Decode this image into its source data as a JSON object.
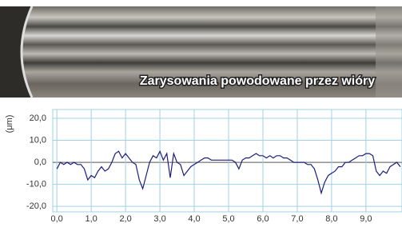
{
  "photo": {
    "caption": "Zarysowania powodowane przez wióry"
  },
  "chart_data": {
    "type": "line",
    "y_label": "(μm)",
    "color": "#1c1f7a",
    "grid": true,
    "xlim": [
      -0.12,
      10.05
    ],
    "ylim": [
      -22.5,
      24
    ],
    "xticks": [
      {
        "value": 0,
        "label": "0,0"
      },
      {
        "value": 1,
        "label": "1,0"
      },
      {
        "value": 2,
        "label": "2,0"
      },
      {
        "value": 3,
        "label": "3,0"
      },
      {
        "value": 4,
        "label": "4,0"
      },
      {
        "value": 5,
        "label": "5,0"
      },
      {
        "value": 6,
        "label": "6,0"
      },
      {
        "value": 7,
        "label": "7,0"
      },
      {
        "value": 8,
        "label": "8,0"
      },
      {
        "value": 9,
        "label": "9,0"
      }
    ],
    "yticks": [
      {
        "value": 20,
        "label": "20,0"
      },
      {
        "value": 10,
        "label": "10,0"
      },
      {
        "value": 0,
        "label": "0,0"
      },
      {
        "value": -10,
        "label": "-10,0"
      },
      {
        "value": -20,
        "label": "-20,0"
      }
    ],
    "x": [
      0.0,
      0.1,
      0.2,
      0.3,
      0.4,
      0.5,
      0.6,
      0.7,
      0.8,
      0.9,
      1.0,
      1.1,
      1.2,
      1.3,
      1.4,
      1.5,
      1.6,
      1.7,
      1.8,
      1.9,
      2.0,
      2.1,
      2.2,
      2.3,
      2.4,
      2.5,
      2.6,
      2.7,
      2.8,
      2.9,
      3.0,
      3.1,
      3.2,
      3.3,
      3.4,
      3.5,
      3.6,
      3.7,
      3.8,
      3.9,
      4.0,
      4.1,
      4.2,
      4.3,
      4.4,
      4.5,
      4.6,
      4.7,
      4.8,
      4.9,
      5.0,
      5.1,
      5.2,
      5.3,
      5.4,
      5.5,
      5.6,
      5.7,
      5.8,
      5.9,
      6.0,
      6.1,
      6.2,
      6.3,
      6.4,
      6.5,
      6.6,
      6.7,
      6.8,
      6.9,
      7.0,
      7.1,
      7.2,
      7.3,
      7.4,
      7.5,
      7.6,
      7.7,
      7.8,
      7.9,
      8.0,
      8.1,
      8.2,
      8.3,
      8.4,
      8.5,
      8.6,
      8.7,
      8.8,
      8.9,
      9.0,
      9.1,
      9.2,
      9.3,
      9.4,
      9.5,
      9.6,
      9.7,
      9.8,
      9.9,
      10.0
    ],
    "values": [
      -3,
      0,
      -1,
      0,
      -1,
      0,
      -1,
      -1,
      -3,
      -8,
      -6,
      -7,
      -4,
      -2,
      -4,
      -3,
      0,
      4,
      5,
      2,
      4,
      2,
      0,
      -1,
      -8,
      -12,
      -6,
      0,
      3,
      2,
      5,
      1,
      4,
      -7,
      4,
      0,
      -1,
      -6,
      -4,
      -2,
      -1,
      0,
      1,
      2,
      2,
      1,
      1,
      1,
      1,
      1,
      1,
      1,
      0,
      -3,
      1,
      2,
      2,
      3,
      4,
      3,
      3,
      2,
      3,
      2,
      3,
      3,
      2,
      2,
      1,
      0,
      0,
      0,
      0,
      -1,
      -1,
      -3,
      -8,
      -14,
      -9,
      -6,
      -5,
      -4,
      -2,
      -2,
      0,
      0,
      1,
      2,
      3,
      3,
      4,
      4,
      3,
      -4,
      -6,
      -4,
      -5,
      -2,
      -1,
      0,
      -2
    ]
  }
}
